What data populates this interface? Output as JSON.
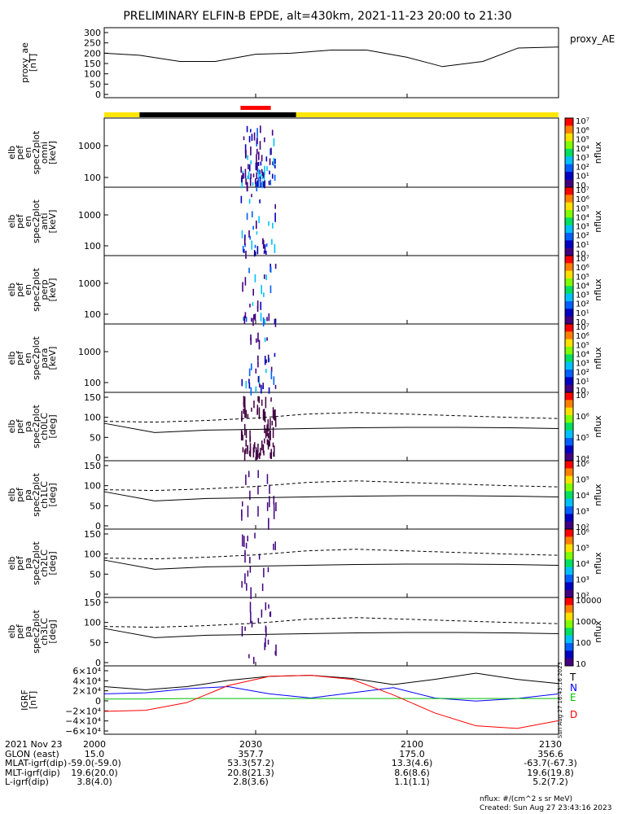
{
  "title": "PRELIMINARY ELFIN-B EPDE, alt=430km, 2021-11-23 20:00 to 21:30",
  "colors": {
    "yellow": "#ffe600",
    "black": "#000000",
    "red": "#ff0000",
    "blue": "#0000ff",
    "green": "#00c000"
  },
  "panels": [
    {
      "id": "proxy_ae",
      "ylabels": [
        "proxy_ae",
        "[nT]"
      ],
      "right_label": "proxy_AE",
      "ticks": [
        "0",
        "50",
        "100",
        "150",
        "200",
        "250",
        "300"
      ],
      "cb": null
    },
    {
      "id": "en_omni",
      "ylabels": [
        "elb",
        "pef",
        "en",
        "spec2plot",
        "omni",
        "[keV]"
      ],
      "ticks": [
        "100",
        "1000"
      ],
      "cb": [
        "10",
        "10¹",
        "10²",
        "10³",
        "10⁴",
        "10⁵",
        "10⁶",
        "10⁷"
      ],
      "cb_unit": "nflux"
    },
    {
      "id": "en_anti",
      "ylabels": [
        "elb",
        "pef",
        "en",
        "spec2plot",
        "anti",
        "[keV]"
      ],
      "ticks": [
        "100",
        "1000"
      ],
      "cb": [
        "10",
        "10¹",
        "10²",
        "10³",
        "10⁴",
        "10⁵",
        "10⁶",
        "10⁷"
      ],
      "cb_unit": "nflux"
    },
    {
      "id": "en_perp",
      "ylabels": [
        "elb",
        "pef",
        "en",
        "spec2plot",
        "perp",
        "[keV]"
      ],
      "ticks": [
        "100",
        "1000"
      ],
      "cb": [
        "10",
        "10¹",
        "10²",
        "10³",
        "10⁴",
        "10⁵",
        "10⁶",
        "10⁷"
      ],
      "cb_unit": "nflux"
    },
    {
      "id": "en_para",
      "ylabels": [
        "elb",
        "pef",
        "en",
        "spec2plot",
        "para",
        "[keV]"
      ],
      "ticks": [
        "100",
        "1000"
      ],
      "cb": [
        "10",
        "10¹",
        "10²",
        "10³",
        "10⁴",
        "10⁵",
        "10⁶",
        "10⁷"
      ],
      "cb_unit": "nflux"
    },
    {
      "id": "ch0LC",
      "ylabels": [
        "elb",
        "pef",
        "pa",
        "spec2plot",
        "ch0LC",
        "[deg]"
      ],
      "ticks": [
        "0",
        "50",
        "100",
        "150"
      ],
      "cb": [
        "10⁴",
        "10⁵",
        "10⁶",
        "10⁷"
      ],
      "cb_unit": "nflux"
    },
    {
      "id": "ch1LC",
      "ylabels": [
        "elb",
        "pef",
        "pa",
        "spec2plot",
        "ch1LC",
        "[deg]"
      ],
      "ticks": [
        "0",
        "50",
        "100",
        "150"
      ],
      "cb": [
        "10²",
        "10³",
        "10⁴",
        "10⁵",
        "10⁶"
      ],
      "cb_unit": "nflux"
    },
    {
      "id": "ch2LC",
      "ylabels": [
        "elb",
        "pef",
        "pa",
        "spec2plot",
        "ch2LC",
        "[deg]"
      ],
      "ticks": [
        "0",
        "50",
        "100",
        "150"
      ],
      "cb": [
        "10²",
        "10³",
        "10⁴",
        "10⁵",
        "10⁶"
      ],
      "cb_unit": "nflux"
    },
    {
      "id": "ch3LC",
      "ylabels": [
        "elb",
        "pef",
        "pa",
        "spec2plot",
        "ch3LC",
        "[deg]"
      ],
      "ticks": [
        "0",
        "50",
        "100",
        "150"
      ],
      "cb": [
        "10",
        "100",
        "1000",
        "10000"
      ],
      "cb_unit": "nflux"
    },
    {
      "id": "igrf",
      "ylabels": [
        "IGRF",
        "[nT]"
      ],
      "ticks": [
        "−6×10⁴",
        "−4×10⁴",
        "−2×10⁴",
        "0",
        "2×10⁴",
        "4×10⁴",
        "6×10⁴"
      ],
      "cb": null,
      "legend": [
        "T",
        "N",
        "E",
        "D"
      ],
      "side_stamp": "Sun Aug 27 16:43:16 2023"
    }
  ],
  "chart_data": {
    "type": "line",
    "x_tick_labels": [
      "2000",
      "2030",
      "2100",
      "2130"
    ],
    "proxy_ae": {
      "ylim": [
        0,
        300
      ],
      "x_min": [
        0,
        7,
        15,
        22,
        30,
        37,
        45,
        52,
        60,
        67,
        75,
        82,
        90
      ],
      "values": [
        200,
        190,
        160,
        160,
        195,
        200,
        215,
        215,
        180,
        135,
        160,
        225,
        230
      ]
    },
    "pa_lines": {
      "solid_deg": [
        85,
        62,
        68,
        70,
        72,
        74,
        75,
        75,
        74,
        72
      ],
      "dashed_deg": [
        90,
        88,
        92,
        98,
        108,
        112,
        108,
        104,
        100,
        97
      ]
    },
    "igrf": {
      "ylim": [
        -60000,
        60000
      ],
      "series": [
        {
          "name": "T",
          "values": [
            26000,
            20000,
            26000,
            38000,
            46000,
            48000,
            42000,
            30000,
            40000,
            52000,
            40000,
            32000
          ]
        },
        {
          "name": "N",
          "values": [
            12000,
            14000,
            22000,
            26000,
            12000,
            4000,
            14000,
            24000,
            4000,
            -2000,
            3000,
            12000
          ]
        },
        {
          "name": "E",
          "values": [
            2000,
            2000,
            3000,
            3000,
            3000,
            3000,
            3000,
            3000,
            3000,
            3000,
            3000,
            3000
          ]
        },
        {
          "name": "D",
          "values": [
            -22000,
            -20000,
            -5000,
            28000,
            46000,
            48000,
            40000,
            10000,
            -25000,
            -50000,
            -55000,
            -40000
          ]
        }
      ]
    },
    "orbit_bar": {
      "segments": [
        "yellow",
        "black",
        "yellow"
      ],
      "red_marker_minutes": [
        27,
        33
      ]
    }
  },
  "footer_rows": [
    {
      "label": "2021 Nov 23",
      "values": [
        "2000",
        "2030",
        "2100",
        "2130"
      ]
    },
    {
      "label": "GLON (east)",
      "values": [
        "15.0",
        "357.7",
        "175.0",
        "356.6"
      ]
    },
    {
      "label": "MLAT-igrf(dip)",
      "values": [
        "-59.0(-59.0)",
        "53.3(57.2)",
        "13.3(4.6)",
        "-63.7(-67.3)"
      ]
    },
    {
      "label": "MLT-igrf(dip)",
      "values": [
        "19.6(20.0)",
        "20.8(21.3)",
        "8.6(8.6)",
        "19.6(19.8)"
      ]
    },
    {
      "label": "L-igrf(dip)",
      "values": [
        "3.8(4.0)",
        "2.8(3.6)",
        "1.1(1.1)",
        "5.2(7.2)"
      ]
    }
  ],
  "units_note": "nflux: #/(cm^2 s sr MeV)",
  "created": "Created: Sun Aug 27 23:43:16 2023"
}
